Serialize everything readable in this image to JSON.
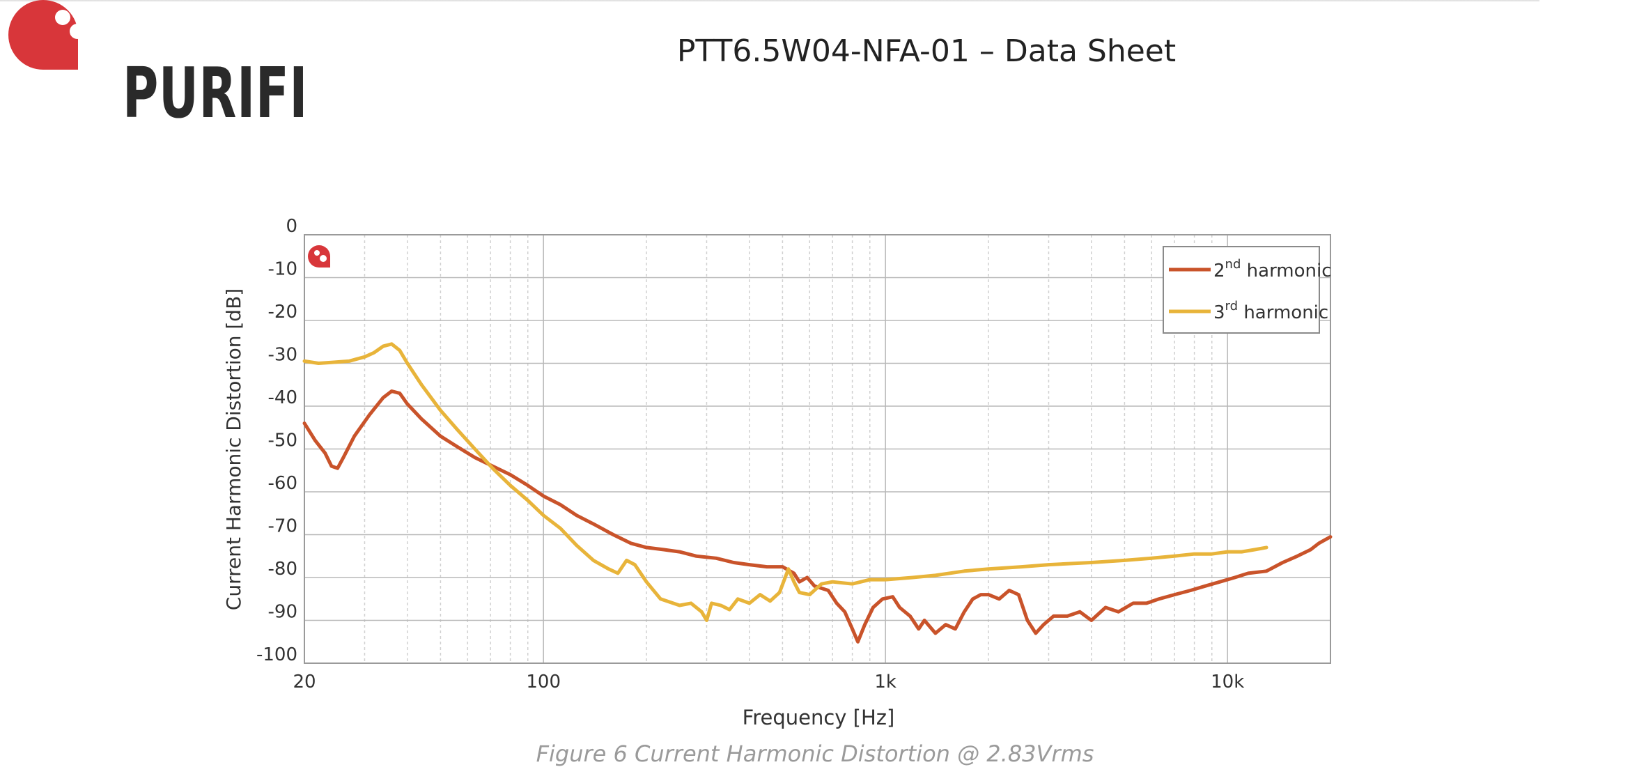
{
  "header": {
    "brand": "PURIFI",
    "title": "PTT6.5W04-NFA-01 – Data Sheet"
  },
  "caption": "Figure 6 Current Harmonic Distortion @ 2.83Vrms",
  "colors": {
    "brand_red": "#d8363a",
    "second_harmonic": "#c9532a",
    "third_harmonic": "#e8b43a",
    "grid_major": "#b8b8b8",
    "grid_minor": "#d0d0d0"
  },
  "chart_data": {
    "type": "line",
    "x_scale": "log",
    "xlim": [
      20,
      20000
    ],
    "ylim": [
      -100,
      0
    ],
    "xlabel": "Frequency [Hz]",
    "ylabel": "Current Harmonic Distortion [dB]",
    "x_ticks": [
      {
        "value": 20,
        "label": "20"
      },
      {
        "value": 100,
        "label": "100"
      },
      {
        "value": 1000,
        "label": "1k"
      },
      {
        "value": 10000,
        "label": "10k"
      }
    ],
    "y_ticks": [
      {
        "value": 0,
        "label": "0"
      },
      {
        "value": -10,
        "label": "-10"
      },
      {
        "value": -20,
        "label": "-20"
      },
      {
        "value": -30,
        "label": "-30"
      },
      {
        "value": -40,
        "label": "-40"
      },
      {
        "value": -50,
        "label": "-50"
      },
      {
        "value": -60,
        "label": "-60"
      },
      {
        "value": -70,
        "label": "-70"
      },
      {
        "value": -80,
        "label": "-80"
      },
      {
        "value": -90,
        "label": "-90"
      },
      {
        "value": -100,
        "label": "-100"
      }
    ],
    "grid": true,
    "legend_position": "top-right",
    "series": [
      {
        "name": "2nd harmonic",
        "name_base": "2",
        "name_sup": "nd",
        "name_rest": " harmonic",
        "color": "#c9532a",
        "points": [
          [
            20,
            -44
          ],
          [
            21.5,
            -48
          ],
          [
            23,
            -51
          ],
          [
            24,
            -54
          ],
          [
            25,
            -54.5
          ],
          [
            26,
            -52
          ],
          [
            28,
            -47
          ],
          [
            31,
            -42
          ],
          [
            34,
            -38
          ],
          [
            36,
            -36.5
          ],
          [
            38,
            -37
          ],
          [
            40,
            -39.5
          ],
          [
            44,
            -43
          ],
          [
            50,
            -47
          ],
          [
            56,
            -49.5
          ],
          [
            63,
            -52
          ],
          [
            71,
            -54
          ],
          [
            80,
            -56
          ],
          [
            90,
            -58.5
          ],
          [
            100,
            -61
          ],
          [
            112,
            -63
          ],
          [
            125,
            -65.5
          ],
          [
            140,
            -67.5
          ],
          [
            160,
            -70
          ],
          [
            180,
            -72
          ],
          [
            200,
            -73
          ],
          [
            225,
            -73.5
          ],
          [
            250,
            -74
          ],
          [
            280,
            -75
          ],
          [
            320,
            -75.5
          ],
          [
            360,
            -76.5
          ],
          [
            400,
            -77
          ],
          [
            450,
            -77.5
          ],
          [
            500,
            -77.5
          ],
          [
            540,
            -79
          ],
          [
            560,
            -81
          ],
          [
            590,
            -80
          ],
          [
            620,
            -82
          ],
          [
            680,
            -83
          ],
          [
            720,
            -86
          ],
          [
            760,
            -88
          ],
          [
            800,
            -92
          ],
          [
            830,
            -95
          ],
          [
            870,
            -91
          ],
          [
            920,
            -87
          ],
          [
            980,
            -85
          ],
          [
            1050,
            -84.5
          ],
          [
            1100,
            -87
          ],
          [
            1180,
            -89
          ],
          [
            1250,
            -92
          ],
          [
            1300,
            -90
          ],
          [
            1400,
            -93
          ],
          [
            1500,
            -91
          ],
          [
            1600,
            -92
          ],
          [
            1700,
            -88
          ],
          [
            1800,
            -85
          ],
          [
            1900,
            -84
          ],
          [
            2000,
            -84
          ],
          [
            2150,
            -85
          ],
          [
            2300,
            -83
          ],
          [
            2450,
            -84
          ],
          [
            2600,
            -90
          ],
          [
            2750,
            -93
          ],
          [
            2900,
            -91
          ],
          [
            3100,
            -89
          ],
          [
            3400,
            -89
          ],
          [
            3700,
            -88
          ],
          [
            4000,
            -90
          ],
          [
            4400,
            -87
          ],
          [
            4800,
            -88
          ],
          [
            5300,
            -86
          ],
          [
            5800,
            -86
          ],
          [
            6300,
            -85
          ],
          [
            7000,
            -84
          ],
          [
            7800,
            -83
          ],
          [
            8600,
            -82
          ],
          [
            9500,
            -81
          ],
          [
            10500,
            -80
          ],
          [
            11500,
            -79
          ],
          [
            13000,
            -78.5
          ],
          [
            14500,
            -76.5
          ],
          [
            16000,
            -75
          ],
          [
            17500,
            -73.5
          ],
          [
            18500,
            -72
          ],
          [
            19500,
            -71
          ],
          [
            20000,
            -70.5
          ]
        ]
      },
      {
        "name": "3rd harmonic",
        "name_base": "3",
        "name_sup": "rd",
        "name_rest": " harmonic",
        "color": "#e8b43a",
        "points": [
          [
            20,
            -29.5
          ],
          [
            22,
            -30
          ],
          [
            24,
            -29.8
          ],
          [
            27,
            -29.5
          ],
          [
            30,
            -28.5
          ],
          [
            32,
            -27.5
          ],
          [
            34,
            -26
          ],
          [
            36,
            -25.5
          ],
          [
            38,
            -27
          ],
          [
            40,
            -30
          ],
          [
            44,
            -35
          ],
          [
            50,
            -41
          ],
          [
            56,
            -45.5
          ],
          [
            63,
            -50
          ],
          [
            71,
            -54.5
          ],
          [
            80,
            -58.5
          ],
          [
            90,
            -62
          ],
          [
            100,
            -65.5
          ],
          [
            112,
            -68.5
          ],
          [
            125,
            -72.5
          ],
          [
            140,
            -76
          ],
          [
            155,
            -78
          ],
          [
            165,
            -79
          ],
          [
            175,
            -76
          ],
          [
            185,
            -77
          ],
          [
            200,
            -81
          ],
          [
            220,
            -85
          ],
          [
            250,
            -86.5
          ],
          [
            270,
            -86
          ],
          [
            290,
            -88
          ],
          [
            300,
            -90
          ],
          [
            310,
            -86
          ],
          [
            330,
            -86.5
          ],
          [
            350,
            -87.5
          ],
          [
            370,
            -85
          ],
          [
            400,
            -86
          ],
          [
            430,
            -84
          ],
          [
            460,
            -85.5
          ],
          [
            490,
            -83.5
          ],
          [
            520,
            -78
          ],
          [
            540,
            -81
          ],
          [
            560,
            -83.5
          ],
          [
            600,
            -84
          ],
          [
            650,
            -81.5
          ],
          [
            700,
            -81
          ],
          [
            800,
            -81.5
          ],
          [
            900,
            -80.5
          ],
          [
            1000,
            -80.5
          ],
          [
            1200,
            -80
          ],
          [
            1400,
            -79.5
          ],
          [
            1700,
            -78.5
          ],
          [
            2000,
            -78
          ],
          [
            2500,
            -77.5
          ],
          [
            3000,
            -77
          ],
          [
            4000,
            -76.5
          ],
          [
            5000,
            -76
          ],
          [
            6000,
            -75.5
          ],
          [
            7000,
            -75
          ],
          [
            8000,
            -74.5
          ],
          [
            9000,
            -74.5
          ],
          [
            10000,
            -74
          ],
          [
            11000,
            -74
          ],
          [
            12000,
            -73.5
          ],
          [
            13000,
            -73
          ]
        ]
      }
    ]
  }
}
